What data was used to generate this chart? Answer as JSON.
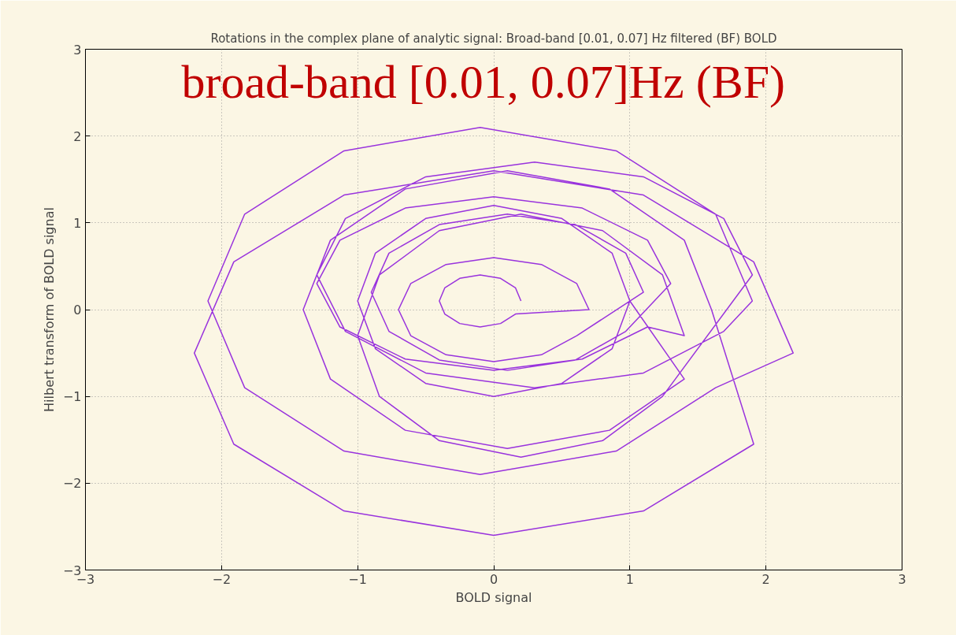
{
  "chart_data": {
    "type": "line",
    "title": "Rotations in the complex plane of analytic signal: Broad-band [0.01, 0.07] Hz filtered (BF) BOLD",
    "xlabel": "BOLD signal",
    "ylabel": "Hilbert transform of BOLD signal",
    "annotations": [
      "broad-band [0.01, 0.07]Hz (BF)"
    ],
    "xlim": [
      -3,
      3
    ],
    "ylim": [
      -3,
      3
    ],
    "xticks": [
      -3,
      -2,
      -1,
      0,
      1,
      2,
      3
    ],
    "yticks": [
      -3,
      -2,
      -1,
      0,
      1,
      2,
      3
    ],
    "grid": true,
    "line_style": "solid",
    "marker": "none",
    "series": [
      {
        "color": "#9933dd",
        "x": [
          0.2,
          0.16,
          0.05,
          -0.1,
          -0.25,
          -0.36,
          -0.4,
          -0.36,
          -0.25,
          -0.1,
          0.05,
          0.16,
          0.7,
          0.61,
          0.35,
          0,
          -0.35,
          -0.61,
          -0.7,
          -0.61,
          -0.35,
          0,
          0.35,
          0.61,
          1.1,
          0.97,
          0.6,
          0.1,
          -0.4,
          -0.77,
          -0.9,
          -0.77,
          -0.4,
          0.1,
          0.6,
          0.97,
          1.3,
          1.13,
          0.65,
          0,
          -0.65,
          -1.13,
          -1.3,
          -1.13,
          -0.65,
          0,
          0.65,
          1.13,
          1.4,
          1.24,
          0.8,
          0.2,
          -0.4,
          -0.84,
          -1.0,
          -0.84,
          -0.4,
          0.2,
          0.8,
          1.24,
          1.9,
          1.69,
          1.1,
          0.3,
          -0.5,
          -1.09,
          -1.3,
          -1.09,
          -0.5,
          0.3,
          1.1,
          1.69,
          1.9,
          1.63,
          0.9,
          -0.1,
          -1.1,
          -1.83,
          -2.1,
          -1.83,
          -1.1,
          -0.1,
          0.9,
          1.63,
          2.2,
          1.91,
          1.1,
          0,
          -1.1,
          -1.91,
          -2.2,
          -1.91,
          -1.1,
          0,
          1.1,
          1.91,
          1.6,
          1.4,
          0.85,
          0.1,
          -0.65,
          -1.2,
          -1.4,
          -1.2,
          -0.65,
          0.1,
          0.85,
          1.4,
          1.0,
          0.87,
          0.5,
          0,
          -0.5,
          -0.87,
          -1.0,
          -0.87,
          -0.5,
          0,
          0.5,
          0.87,
          1.0
        ],
        "values": [
          0.1,
          0.25,
          0.36,
          0.4,
          0.36,
          0.25,
          0.1,
          -0.05,
          -0.16,
          -0.2,
          -0.16,
          -0.05,
          0,
          0.3,
          0.52,
          0.6,
          0.52,
          0.3,
          0,
          -0.3,
          -0.52,
          -0.6,
          -0.52,
          -0.3,
          0.2,
          0.65,
          0.98,
          1.1,
          0.98,
          0.65,
          0.2,
          -0.25,
          -0.58,
          -0.7,
          -0.58,
          -0.25,
          0.3,
          0.8,
          1.17,
          1.3,
          1.17,
          0.8,
          0.3,
          -0.2,
          -0.57,
          -0.7,
          -0.57,
          -0.2,
          -0.3,
          0.4,
          0.91,
          1.1,
          0.91,
          0.4,
          -0.3,
          -1.0,
          -1.51,
          -1.7,
          -1.51,
          -1.0,
          0.4,
          1.05,
          1.53,
          1.7,
          1.53,
          1.05,
          0.4,
          -0.25,
          -0.73,
          -0.9,
          -0.73,
          -0.25,
          0.1,
          1.1,
          1.83,
          2.1,
          1.83,
          1.1,
          0.1,
          -0.9,
          -1.63,
          -1.9,
          -1.63,
          -0.9,
          -0.5,
          0.55,
          1.32,
          1.6,
          1.32,
          0.55,
          -0.5,
          -1.55,
          -2.32,
          -2.6,
          -2.32,
          -1.55,
          0,
          0.8,
          1.39,
          1.6,
          1.39,
          0.8,
          0,
          -0.8,
          -1.39,
          -1.6,
          -1.39,
          -0.8,
          0.1,
          0.65,
          1.05,
          1.2,
          1.05,
          0.65,
          0.1,
          -0.45,
          -0.85,
          -1.0,
          -0.85,
          -0.45,
          0.1
        ]
      }
    ]
  }
}
